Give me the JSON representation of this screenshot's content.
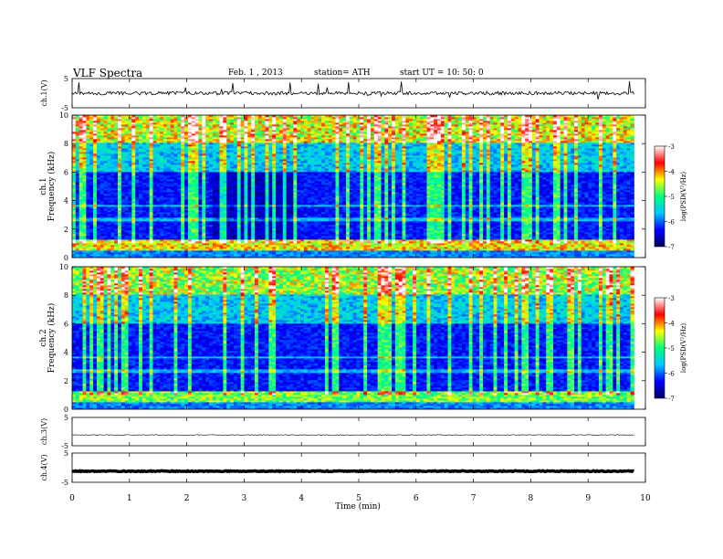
{
  "header": {
    "title": "VLF  Spectra",
    "date": "Feb. 1  , 2013",
    "station": "station= ATH",
    "start": "start  UT  =    10: 50: 0"
  },
  "chart_data": {
    "type": "heatmap",
    "x": {
      "label": "Time  (min)",
      "range": [
        0,
        10
      ],
      "ticks": [
        "0",
        "1",
        "2",
        "3",
        "4",
        "5",
        "6",
        "7",
        "8",
        "9",
        "10"
      ]
    },
    "panels": [
      {
        "name": "ch.1(V)",
        "kind": "waveform",
        "ylim": [
          -5,
          5
        ],
        "ticks": [
          "5",
          "-5"
        ],
        "baseline": 0
      },
      {
        "name": "ch.1",
        "kind": "spectrogram",
        "ylabel": "Frequency  (kHz)",
        "ylim": [
          0,
          10
        ],
        "ticks": [
          "0",
          "2",
          "4",
          "6",
          "8",
          "10"
        ],
        "data_end_min": 9.8
      },
      {
        "name": "ch.2",
        "kind": "spectrogram",
        "ylabel": "Frequency  (kHz)",
        "ylim": [
          0,
          10
        ],
        "ticks": [
          "0",
          "2",
          "4",
          "6",
          "8",
          "10"
        ],
        "data_end_min": 9.8
      },
      {
        "name": "ch.3(V)",
        "kind": "waveform",
        "ylim": [
          -5,
          5
        ],
        "ticks": [
          "5",
          "-5"
        ],
        "baseline": -1.2
      },
      {
        "name": "ch.4(V)",
        "kind": "waveform",
        "ylim": [
          -5,
          5
        ],
        "ticks": [
          "5",
          "-5"
        ],
        "baseline": -1.2
      }
    ],
    "colorbar": {
      "label": "log(PSD(V²/Hz)",
      "range": [
        -7,
        -3
      ],
      "ticks": [
        "-3",
        "-4",
        "-5",
        "-6",
        "-7"
      ],
      "colors": [
        "#000060",
        "#0000ff",
        "#00c8ff",
        "#00ff80",
        "#ffff00",
        "#ff0000",
        "#ffffff"
      ]
    }
  }
}
